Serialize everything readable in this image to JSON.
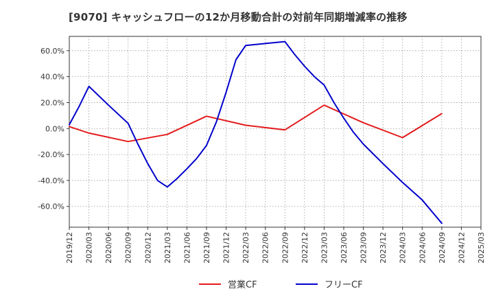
{
  "chart_data": {
    "type": "line",
    "title": "[9070]  キャッシュフローの12か月移動合計の対前年同期増減率の推移",
    "xlabel": "",
    "ylabel": "",
    "ylim": [
      -76,
      71
    ],
    "y_ticks": [
      60,
      40,
      20,
      0,
      -20,
      -40,
      -60
    ],
    "y_tick_labels": [
      "60.0%",
      "40.0%",
      "20.0%",
      "0.0%",
      "-20.0%",
      "-40.0%",
      "-60.0%"
    ],
    "x_labels": [
      "2019/12",
      "2020/03",
      "2020/06",
      "2020/09",
      "2020/12",
      "2021/03",
      "2021/06",
      "2021/09",
      "2021/12",
      "2022/03",
      "2022/06",
      "2022/09",
      "2022/12",
      "2023/03",
      "2023/06",
      "2023/09",
      "2023/12",
      "2024/03",
      "2024/06",
      "2024/09",
      "2024/12",
      "2025/03"
    ],
    "grid": true,
    "legend_position": "bottom-center",
    "series": [
      {
        "name": "営業CF",
        "color": "#e31a1c",
        "x": [
          0,
          1,
          3,
          5,
          7,
          9,
          11,
          13,
          15,
          17,
          19
        ],
        "values": [
          1.5,
          -3.5,
          -10,
          -4.5,
          9.5,
          2.5,
          -1,
          18,
          4.5,
          -7,
          11.5
        ]
      },
      {
        "name": "フリーCF",
        "color": "#0000cc",
        "x": [
          0,
          0.5,
          1,
          2,
          3,
          3.5,
          4,
          4.5,
          5,
          5.5,
          6,
          6.5,
          7,
          7.5,
          8,
          8.5,
          9,
          10,
          11,
          11.5,
          12,
          12.5,
          13,
          13.5,
          14,
          14.5,
          15,
          16,
          17,
          18,
          19
        ],
        "values": [
          3,
          17,
          32.5,
          18,
          4,
          -12,
          -27,
          -40,
          -45,
          -38.5,
          -31,
          -23,
          -13,
          5,
          28,
          53,
          64,
          65.5,
          67,
          57,
          48,
          40,
          33.5,
          20,
          8,
          -3,
          -12,
          -27,
          -41.5,
          -55,
          -73
        ]
      }
    ]
  }
}
